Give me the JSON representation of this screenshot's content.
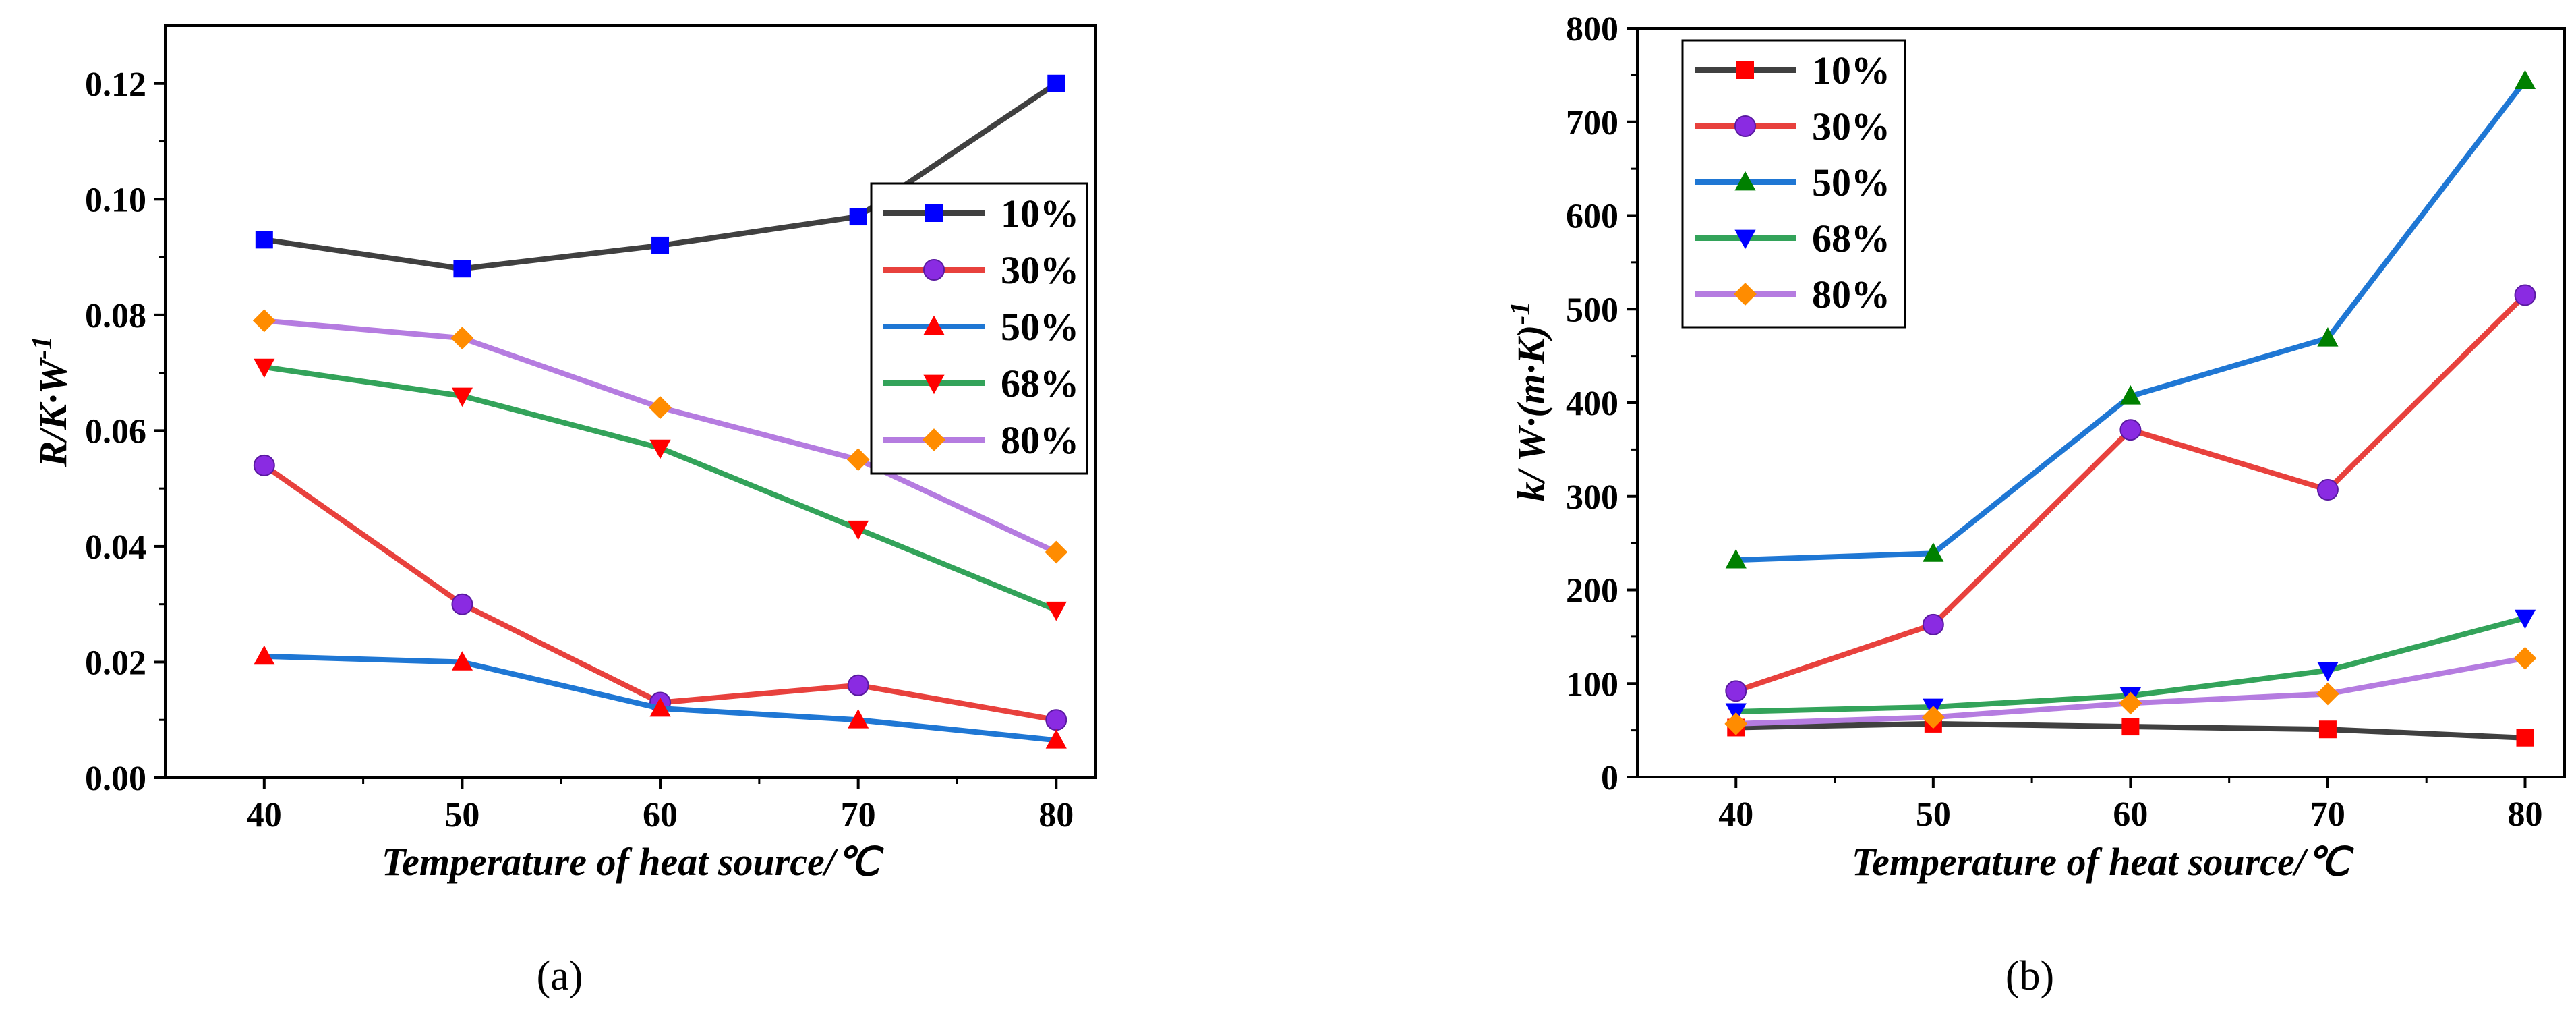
{
  "chart_data": [
    {
      "type": "line",
      "panel_label": "(a)",
      "xlabel": "Temperature of heat source/℃",
      "ylabel": "R/K·W",
      "ylabel_sup": "-1",
      "x": [
        40,
        50,
        60,
        70,
        80
      ],
      "xlim": [
        35,
        82
      ],
      "ylim": [
        0,
        0.13
      ],
      "xticks": [
        "40",
        "50",
        "60",
        "70",
        "80"
      ],
      "yticks": [
        "0.00",
        "0.02",
        "0.04",
        "0.06",
        "0.08",
        "0.10",
        "0.12"
      ],
      "ytick_values": [
        0,
        0.02,
        0.04,
        0.06,
        0.08,
        0.1,
        0.12
      ],
      "legend_position": "center-right",
      "series": [
        {
          "name": "10%",
          "values": [
            0.093,
            0.088,
            0.092,
            0.097,
            0.12
          ],
          "color": "#404040",
          "marker": "square",
          "marker_color": "#0000ff"
        },
        {
          "name": "30%",
          "values": [
            0.054,
            0.03,
            0.013,
            0.016,
            0.01
          ],
          "color": "#e8413d",
          "marker": "circle",
          "marker_color": "#8a2be2"
        },
        {
          "name": "50%",
          "values": [
            0.021,
            0.02,
            0.012,
            0.01,
            0.0065
          ],
          "color": "#1f77d4",
          "marker": "triangle-up",
          "marker_color": "#ff0000"
        },
        {
          "name": "68%",
          "values": [
            0.071,
            0.066,
            0.057,
            0.043,
            0.029
          ],
          "color": "#33a35a",
          "marker": "triangle-down",
          "marker_color": "#ff0000"
        },
        {
          "name": "80%",
          "values": [
            0.079,
            0.076,
            0.064,
            0.055,
            0.039
          ],
          "color": "#b57ce0",
          "marker": "diamond",
          "marker_color": "#ff8c00"
        }
      ]
    },
    {
      "type": "line",
      "panel_label": "(b)",
      "xlabel": "Temperature of heat source/℃",
      "ylabel": "k/ W·(m·K)",
      "ylabel_sup": "-1",
      "x": [
        40,
        50,
        60,
        70,
        80
      ],
      "xlim": [
        35,
        82
      ],
      "ylim": [
        0,
        800
      ],
      "xticks": [
        "40",
        "50",
        "60",
        "70",
        "80"
      ],
      "yticks": [
        "0",
        "100",
        "200",
        "300",
        "400",
        "500",
        "600",
        "700",
        "800"
      ],
      "ytick_values": [
        0,
        100,
        200,
        300,
        400,
        500,
        600,
        700,
        800
      ],
      "legend_position": "top-left",
      "series": [
        {
          "name": "10%",
          "values": [
            53,
            57,
            54,
            51,
            42
          ],
          "color": "#404040",
          "marker": "square",
          "marker_color": "#ff0000"
        },
        {
          "name": "30%",
          "values": [
            92,
            163,
            371,
            307,
            515
          ],
          "color": "#e8413d",
          "marker": "circle",
          "marker_color": "#8a2be2"
        },
        {
          "name": "50%",
          "values": [
            232,
            239,
            407,
            469,
            744
          ],
          "color": "#1f77d4",
          "marker": "triangle-up",
          "marker_color": "#008000"
        },
        {
          "name": "68%",
          "values": [
            70,
            75,
            87,
            114,
            170
          ],
          "color": "#33a35a",
          "marker": "triangle-down",
          "marker_color": "#0000ff"
        },
        {
          "name": "80%",
          "values": [
            57,
            64,
            79,
            89,
            127
          ],
          "color": "#b57ce0",
          "marker": "diamond",
          "marker_color": "#ff8c00"
        }
      ]
    }
  ]
}
